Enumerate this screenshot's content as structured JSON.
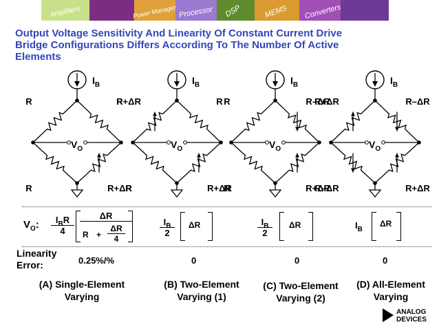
{
  "banner": {
    "words": [
      "Amplifiers",
      "Power Manager",
      "Processor",
      "DSP",
      "MEMS",
      "Converters"
    ],
    "colors": [
      "#c9e08a",
      "#7b2d83",
      "#e0a13a",
      "#9a7ad0",
      "#5f8b2d",
      "#d99b2f",
      "#a04fb5",
      "#6e3a98"
    ]
  },
  "title": {
    "line1": "Output Voltage Sensitivity And Linearity Of Constant Current Drive",
    "line2": "Bridge Configurations Differs According To The Number Of Active",
    "line3": "Elements"
  },
  "colors": {
    "title": "#3346b8",
    "ink": "#000000"
  },
  "bridges": [
    {
      "ib": "I",
      "ib_sub": "B",
      "tl": "R",
      "tr": "R",
      "bl": "R",
      "br": "R+ΔR",
      "vo": "V",
      "vo_sub": "O"
    },
    {
      "ib": "I",
      "ib_sub": "B",
      "tl": "R+ΔR",
      "tr": "R",
      "bl": "R",
      "br": "R+ΔR",
      "vo": "V",
      "vo_sub": "O"
    },
    {
      "ib": "I",
      "ib_sub": "B",
      "tl": "R",
      "tr": "R–ΔR",
      "bl": "R",
      "br": "R+ΔR",
      "vo": "V",
      "vo_sub": "O"
    },
    {
      "ib": "I",
      "ib_sub": "B",
      "tl": "R+ΔR",
      "tr": "R–ΔR",
      "bl": "R–ΔR",
      "br": "R+ΔR",
      "vo": "V",
      "vo_sub": "O"
    }
  ],
  "vo_row": {
    "label": "V",
    "label_sub": "O",
    "label_colon": ":",
    "a": {
      "ib": "I",
      "ib_sub": "B",
      "r": "R",
      "den": "4",
      "inner_num": "ΔR",
      "inner_den_r": "R",
      "plus": "+",
      "inner_frac_num": "ΔR",
      "inner_frac_den": "4"
    },
    "b": {
      "ib": "I",
      "ib_sub": "B",
      "den": "2",
      "body": "ΔR"
    },
    "c": {
      "ib": "I",
      "ib_sub": "B",
      "den": "2",
      "body": "ΔR"
    },
    "d": {
      "ib": "I",
      "ib_sub": "B",
      "body": "ΔR"
    }
  },
  "linearity": {
    "label_line1": "Linearity",
    "label_line2": "Error:",
    "values": [
      "0.25%/%",
      "0",
      "0",
      "0"
    ]
  },
  "captions": [
    {
      "line1": "(A) Single-Element",
      "line2": "Varying"
    },
    {
      "line1": "(B) Two-Element",
      "line2": "Varying (1)"
    },
    {
      "line1": "(C) Two-Element",
      "line2": "Varying (2)"
    },
    {
      "line1": "(D) All-Element",
      "line2": "Varying"
    }
  ],
  "logo": {
    "line1": "ANALOG",
    "line2": "DEVICES"
  }
}
